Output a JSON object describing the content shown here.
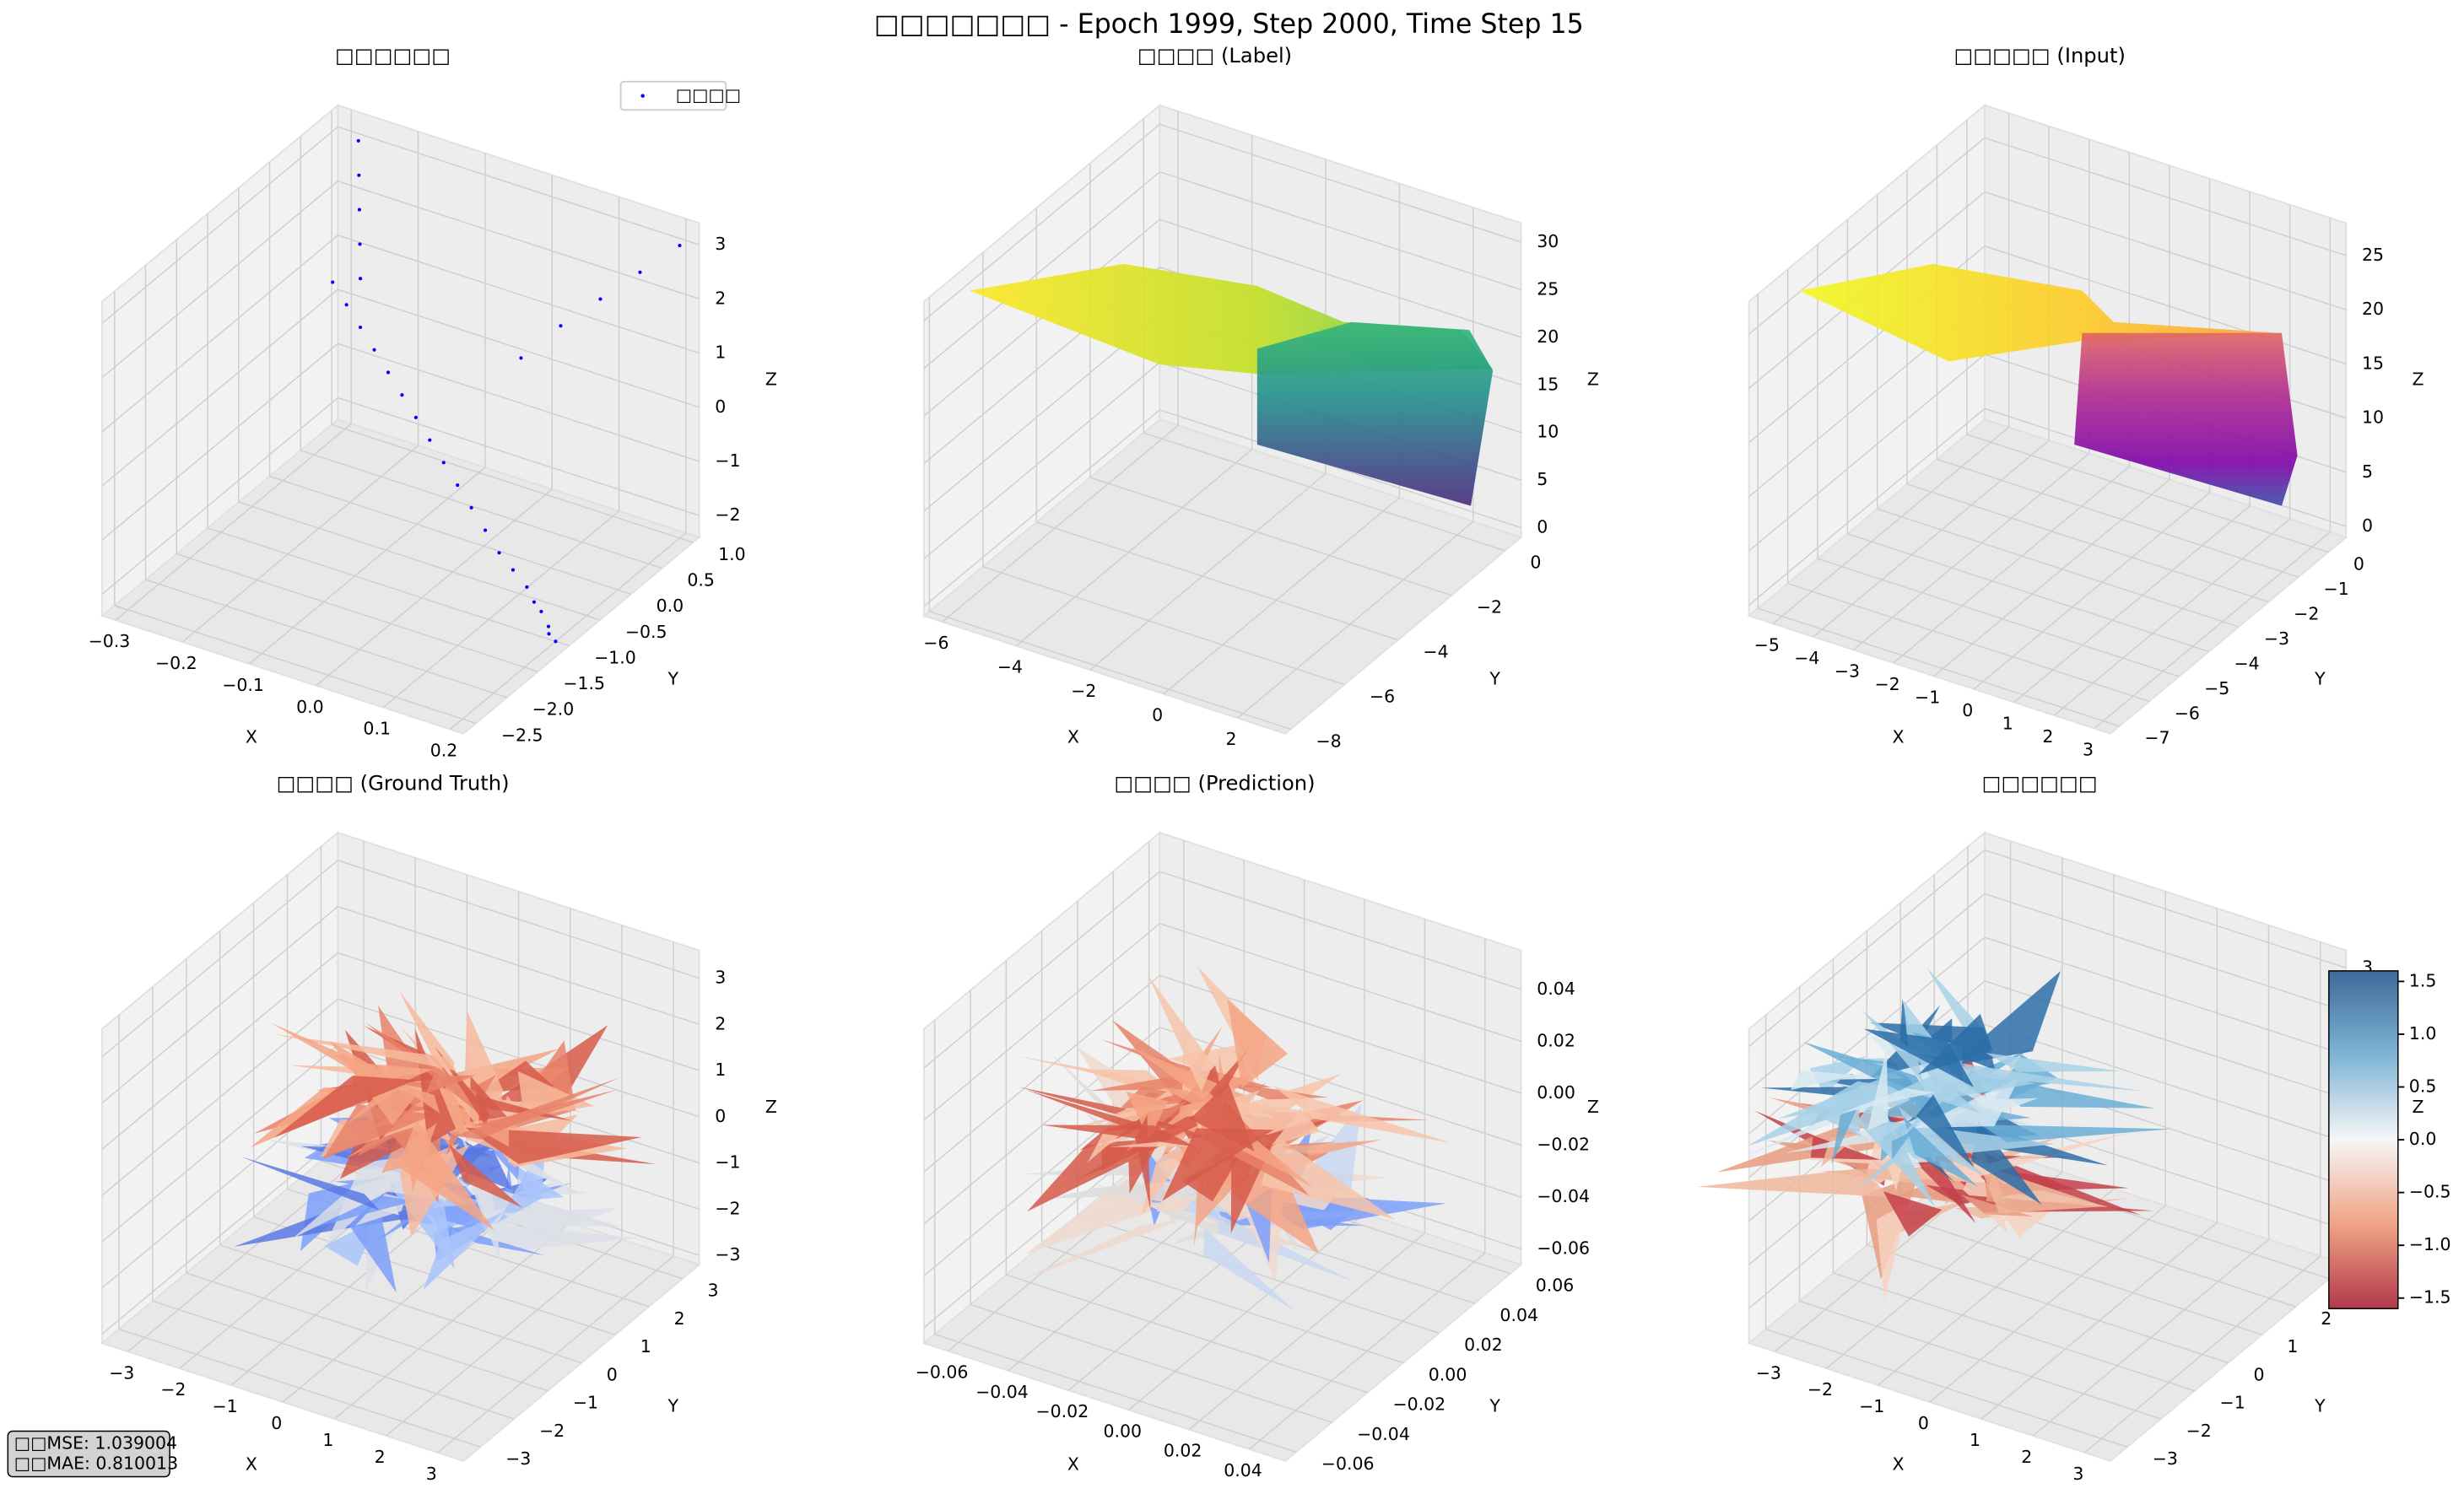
{
  "title": "□□□□□□□ - Epoch 1999, Step 2000, Time Step 15",
  "metrics": [
    "□□MSE: 1.039004",
    "□□MAE: 0.810013"
  ],
  "chart_data": [
    {
      "type": "scatter3d",
      "title": "□□□□□□",
      "xlabel": "X",
      "ylabel": "Y",
      "zlabel": "Z",
      "legend": "upper right",
      "xlim": [
        -0.32,
        0.22
      ],
      "ylim": [
        -2.7,
        1.1
      ],
      "zlim": [
        -2.4,
        3.4
      ],
      "xticks": [
        {
          "value": -0.3,
          "label": "−0.3"
        },
        {
          "value": -0.2,
          "label": "−0.2"
        },
        {
          "value": -0.1,
          "label": "−0.1"
        },
        {
          "value": 0,
          "label": "0.0"
        },
        0.1,
        0.2
      ],
      "yticks": [
        {
          "value": -2.5,
          "label": "−2.5"
        },
        {
          "value": -2,
          "label": "−2.0"
        },
        {
          "value": -1.5,
          "label": "−1.5"
        },
        {
          "value": -1,
          "label": "−1.0"
        },
        {
          "value": -0.5,
          "label": "−0.5"
        },
        {
          "value": 0,
          "label": "0.0"
        },
        0.5,
        {
          "value": 1,
          "label": "1.0"
        }
      ],
      "zticks": [
        {
          "value": -2,
          "label": "−2"
        },
        {
          "value": -1,
          "label": "−1"
        },
        0,
        1,
        2,
        3
      ],
      "series": [
        {
          "name": "□□□□",
          "color": "#0000ff",
          "x": [
            -0.3,
            -0.27,
            -0.24,
            -0.21,
            -0.18,
            -0.15,
            -0.12,
            -0.09,
            -0.06,
            -0.03,
            0.0,
            0.03,
            0.06,
            0.09,
            0.12,
            0.14,
            0.16,
            0.18,
            0.19,
            0.2,
            -0.28,
            -0.27,
            -0.26,
            -0.25,
            -0.24,
            0.0,
            0.05,
            0.1,
            0.15,
            0.2
          ],
          "y": [
            0.8,
            0.7,
            0.6,
            0.5,
            0.4,
            0.3,
            0.2,
            0.1,
            0.0,
            -0.1,
            -0.2,
            -0.3,
            -0.4,
            -0.5,
            -0.6,
            -0.7,
            -0.8,
            -0.9,
            -1.0,
            -1.0,
            1.0,
            0.9,
            0.8,
            0.7,
            0.6,
            0.6,
            0.7,
            0.8,
            0.9,
            1.0
          ],
          "z": [
            0.5,
            0.3,
            0.1,
            -0.1,
            -0.3,
            -0.5,
            -0.7,
            -0.9,
            -1.1,
            -1.3,
            -1.5,
            -1.7,
            -1.9,
            -2.0,
            -2.1,
            -2.2,
            -2.2,
            -2.3,
            -2.3,
            -2.4,
            3.0,
            2.5,
            2.0,
            1.5,
            1.0,
            0.5,
            1.2,
            1.8,
            2.4,
            3.0
          ]
        }
      ]
    },
    {
      "type": "surface3d",
      "title": "□□□□ (Label)",
      "xlabel": "X",
      "ylabel": "Y",
      "zlabel": "Z",
      "colormap": "viridis",
      "xlim": [
        -6.5,
        3.3
      ],
      "ylim": [
        -8.2,
        0.6
      ],
      "zlim": [
        -1,
        32
      ],
      "xticks": [
        {
          "value": -6,
          "label": "−6"
        },
        {
          "value": -4,
          "label": "−4"
        },
        {
          "value": -2,
          "label": "−2"
        },
        0,
        2
      ],
      "yticks": [
        0,
        {
          "value": -2,
          "label": "−2"
        },
        {
          "value": -4,
          "label": "−4"
        },
        {
          "value": -6,
          "label": "−6"
        },
        {
          "value": -8,
          "label": "−8"
        }
      ],
      "zticks": [
        0,
        5,
        10,
        15,
        20,
        25,
        30
      ]
    },
    {
      "type": "surface3d",
      "title": "□□□□□ (Input)",
      "xlabel": "X",
      "ylabel": "Y",
      "zlabel": "Z",
      "colormap": "plasma",
      "xlim": [
        -5.6,
        3.4
      ],
      "ylim": [
        -7.3,
        0.6
      ],
      "zlim": [
        -1,
        28
      ],
      "xticks": [
        {
          "value": -5,
          "label": "−5"
        },
        {
          "value": -4,
          "label": "−4"
        },
        {
          "value": -3,
          "label": "−3"
        },
        {
          "value": -2,
          "label": "−2"
        },
        {
          "value": -1,
          "label": "−1"
        },
        0,
        1,
        2,
        3
      ],
      "yticks": [
        0,
        {
          "value": -1,
          "label": "−1"
        },
        {
          "value": -2,
          "label": "−2"
        },
        {
          "value": -3,
          "label": "−3"
        },
        {
          "value": -4,
          "label": "−4"
        },
        {
          "value": -5,
          "label": "−5"
        },
        {
          "value": -6,
          "label": "−6"
        },
        {
          "value": -7,
          "label": "−7"
        }
      ],
      "zticks": [
        0,
        5,
        10,
        15,
        20,
        25
      ]
    },
    {
      "type": "trisurf3d",
      "title": "□□□□ (Ground Truth)",
      "xlabel": "X",
      "ylabel": "Y",
      "zlabel": "Z",
      "colormap": "coolwarm",
      "xlim": [
        -3.5,
        3.5
      ],
      "ylim": [
        -3.5,
        3.5
      ],
      "zlim": [
        -3.2,
        3.6
      ],
      "xticks": [
        {
          "value": -3,
          "label": "−3"
        },
        {
          "value": -2,
          "label": "−2"
        },
        {
          "value": -1,
          "label": "−1"
        },
        0,
        1,
        2,
        3
      ],
      "yticks": [
        {
          "value": -3,
          "label": "−3"
        },
        {
          "value": -2,
          "label": "−2"
        },
        {
          "value": -1,
          "label": "−1"
        },
        0,
        1,
        2,
        3
      ],
      "zticks": [
        {
          "value": -3,
          "label": "−3"
        },
        {
          "value": -2,
          "label": "−2"
        },
        {
          "value": -1,
          "label": "−1"
        },
        0,
        1,
        2,
        3
      ]
    },
    {
      "type": "trisurf3d",
      "title": "□□□□ (Prediction)",
      "xlabel": "X",
      "ylabel": "Y",
      "zlabel": "Z",
      "colormap": "coolwarm",
      "xlim": [
        -0.068,
        0.052
      ],
      "ylim": [
        -0.066,
        0.066
      ],
      "zlim": [
        -0.066,
        0.055
      ],
      "xticks": [
        {
          "value": -0.06,
          "label": "−0.06"
        },
        {
          "value": -0.04,
          "label": "−0.04"
        },
        {
          "value": -0.02,
          "label": "−0.02"
        },
        {
          "value": 0,
          "label": "0.00"
        },
        0.02,
        0.04
      ],
      "yticks": [
        {
          "value": -0.06,
          "label": "−0.06"
        },
        {
          "value": -0.04,
          "label": "−0.04"
        },
        {
          "value": -0.02,
          "label": "−0.02"
        },
        {
          "value": 0,
          "label": "0.00"
        },
        0.02,
        0.04,
        0.06
      ],
      "zticks": [
        {
          "value": -0.06,
          "label": "−0.06"
        },
        {
          "value": -0.04,
          "label": "−0.04"
        },
        {
          "value": -0.02,
          "label": "−0.02"
        },
        {
          "value": 0,
          "label": "0.00"
        },
        0.02,
        0.04
      ]
    },
    {
      "type": "trisurf3d",
      "title": "□□□□□□",
      "xlabel": "X",
      "ylabel": "Y",
      "zlabel": "Z",
      "colormap": "RdBu",
      "xlim": [
        -3.5,
        3.5
      ],
      "ylim": [
        -3.5,
        3.5
      ],
      "zlim": [
        -3.8,
        3.4
      ],
      "xticks": [
        {
          "value": -3,
          "label": "−3"
        },
        {
          "value": -2,
          "label": "−2"
        },
        {
          "value": -1,
          "label": "−1"
        },
        0,
        1,
        2,
        3
      ],
      "yticks": [
        {
          "value": -3,
          "label": "−3"
        },
        {
          "value": -2,
          "label": "−2"
        },
        {
          "value": -1,
          "label": "−1"
        },
        0,
        1,
        2,
        3
      ],
      "zticks": [
        {
          "value": -3,
          "label": "−3"
        },
        {
          "value": -2,
          "label": "−2"
        },
        {
          "value": -1,
          "label": "−1"
        },
        0,
        1,
        2,
        3
      ],
      "colorbar": {
        "lim": [
          -1.6,
          1.6
        ],
        "ticks": [
          {
            "value": -1.5,
            "label": "−1.5"
          },
          {
            "value": -1,
            "label": "−1.0"
          },
          {
            "value": -0.5,
            "label": "−0.5"
          },
          {
            "value": 0,
            "label": "0.0"
          },
          0.5,
          {
            "value": 1,
            "label": "1.0"
          },
          1.5
        ]
      }
    }
  ]
}
